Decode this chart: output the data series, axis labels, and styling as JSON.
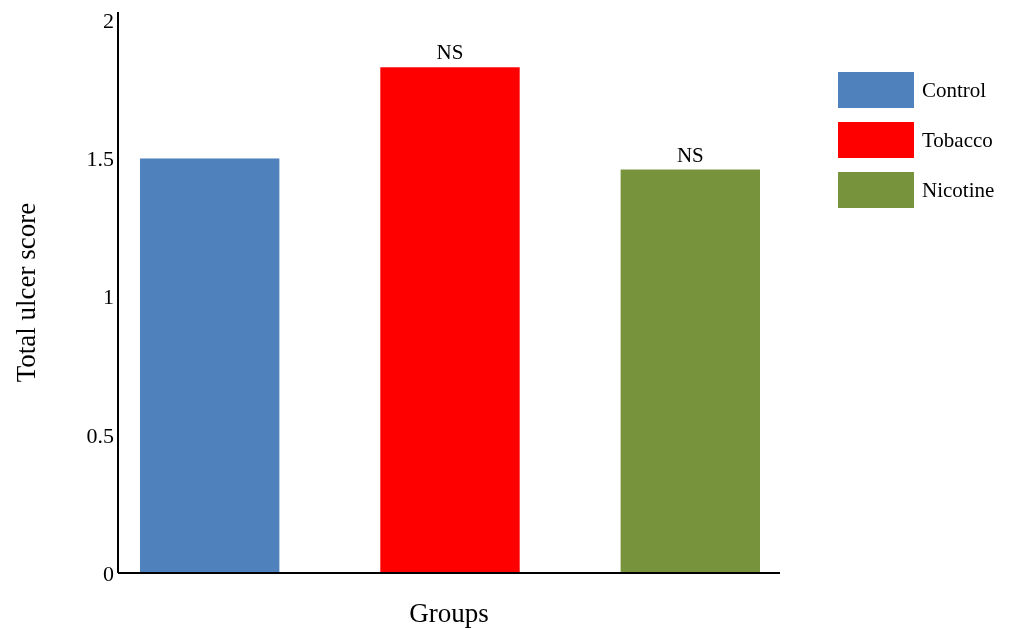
{
  "chart_data": {
    "type": "bar",
    "xlabel": "Groups",
    "ylabel": "Total ulcer score",
    "categories": [
      null,
      null,
      null
    ],
    "series": [
      {
        "name": "Control",
        "color": "#4f81bd",
        "values": [
          1.5,
          null,
          null
        ]
      },
      {
        "name": "Tobacco",
        "color": "#ff0000",
        "values": [
          null,
          1.83,
          null
        ]
      },
      {
        "name": "Nicotine",
        "color": "#77933c",
        "values": [
          null,
          null,
          1.46
        ]
      }
    ],
    "ylim": [
      0,
      2.03
    ],
    "yticks": [
      0,
      0.5,
      1,
      1.5,
      2
    ],
    "grid": false,
    "legend": "right",
    "annotations": [
      {
        "text": "NS",
        "y": 1.83
      },
      {
        "text": "NS",
        "y": 1.46
      }
    ]
  }
}
